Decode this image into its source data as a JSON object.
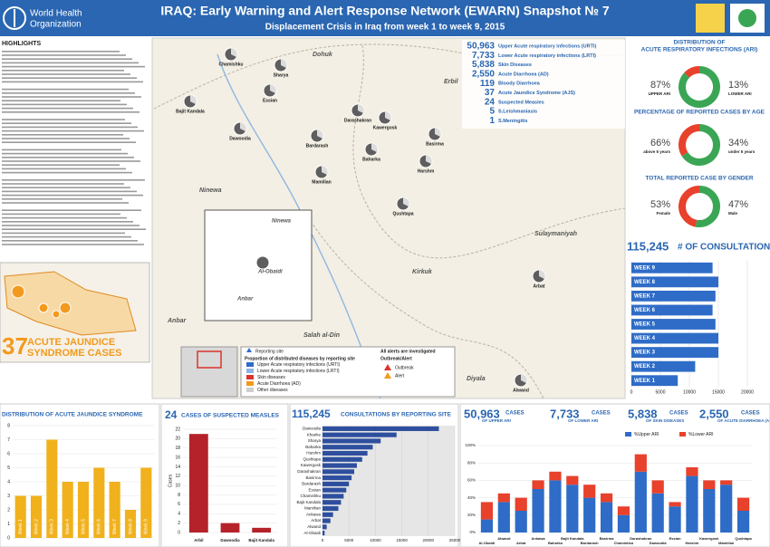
{
  "header": {
    "org": [
      "World Health",
      "Organization"
    ],
    "title": "IRAQ: Early Warning and Alert Response Network (EWARN) Snapshot № 7",
    "subtitle": "Displacement Crisis in Iraq from week 1 to week 9, 2015"
  },
  "highlights": {
    "heading": "HIGHLIGHTS"
  },
  "summary": [
    {
      "count": "50,963",
      "label": "Upper Acute respiratory infections (URTI)"
    },
    {
      "count": "7,733",
      "label": "Lower Acute respiratory infections (LRTI)"
    },
    {
      "count": "5,838",
      "label": "Skin Diseases"
    },
    {
      "count": "2,550",
      "label": "Acute Diarrhoea (AD)"
    },
    {
      "count": "119",
      "label": "Bloody Diarrhoea"
    },
    {
      "count": "37",
      "label": "Acute Jaundice Syndrome (AJS)"
    },
    {
      "count": "24",
      "label": "Suspected Measles"
    },
    {
      "count": "5",
      "label": "S.Leishmaniasis"
    },
    {
      "count": "1",
      "label": "S.Meningitis"
    }
  ],
  "jaundice_headline": {
    "count": "37",
    "label": [
      "ACUTE JAUNDICE",
      "SYNDROME CASES"
    ]
  },
  "consultations_headline": {
    "count": "115,245",
    "label": "# OF CONSULTATIONS"
  },
  "bottom_totals": [
    {
      "count": "50,963",
      "label": "CASES",
      "sub": "OF UPPER ARI"
    },
    {
      "count": "7,733",
      "label": "CASES",
      "sub": "OF LOWER ARI"
    },
    {
      "count": "5,838",
      "label": "CASES",
      "sub": "OF SKIN DISEASES"
    },
    {
      "count": "2,550",
      "label": "CASES",
      "sub": "OF ACUTE DIARRHOEA (AD)"
    }
  ],
  "map": {
    "regions": [
      "Dohuk",
      "Erbil",
      "Ninewa",
      "Sulaymaniyah",
      "Kirkuk",
      "Salah al-Din",
      "Anbar",
      "Diyala"
    ],
    "sites": [
      "Bajit Kandala",
      "Chamishku",
      "Sharya",
      "Essian",
      "Dawoodia",
      "Bardarash",
      "Darashakran",
      "Kawergosk",
      "Baharka",
      "Basirma",
      "Harshm",
      "Mamilian",
      "Qushtapa",
      "Arbat",
      "Alwand"
    ],
    "inset_labels": [
      "Ninewa",
      "Anbar",
      "Al-Obaidi"
    ],
    "legend": {
      "reporting": "Reporting site",
      "heading": "Proportion of distributed diseases by reporting site",
      "items": [
        {
          "label": "Upper Acute respiratory infections (URTI)",
          "color": "#2e6cc7"
        },
        {
          "label": "Lower Acute respiratory infections (LRTI)",
          "color": "#8fb3e6"
        },
        {
          "label": "Skin diseases",
          "color": "#d9342b"
        },
        {
          "label": "Acute Diarrhoea (AD)",
          "color": "#f39a1e"
        },
        {
          "label": "Other diseases",
          "color": "#cfcfcf"
        }
      ],
      "alerts_heading": "All alerts are investigated",
      "alerts_sub": "Outbreak/Alert",
      "alerts": [
        "Outbreak",
        "Alert"
      ]
    }
  },
  "chart_data": [
    {
      "type": "donut",
      "title": [
        "DISTRIBUTION OF",
        "ACUTE RESPIRATORY INFECTIONS (ARI)"
      ],
      "categories": [
        "UPPER ARI",
        "LOWER ARI"
      ],
      "values": [
        87,
        13
      ],
      "value_labels": [
        "87%",
        "13%"
      ],
      "colors": [
        "#3aa655",
        "#e8412c"
      ]
    },
    {
      "type": "donut",
      "title": [
        "PERCENTAGE OF REPORTED CASES BY AGE"
      ],
      "categories": [
        "above 5 years",
        "under 5 years"
      ],
      "values": [
        66,
        34
      ],
      "value_labels": [
        "66%",
        "34%"
      ],
      "colors": [
        "#3aa655",
        "#e8412c"
      ]
    },
    {
      "type": "donut",
      "title": [
        "TOTAL REPORTED CASE BY GENDER"
      ],
      "categories": [
        "Female",
        "Male"
      ],
      "values": [
        53,
        47
      ],
      "value_labels": [
        "53%",
        "47%"
      ],
      "colors": [
        "#3aa655",
        "#e8412c"
      ]
    },
    {
      "type": "hbar",
      "categories": [
        "WEEK 9",
        "WEEK 8",
        "WEEK 7",
        "WEEK 6",
        "WEEK 5",
        "WEEK 4",
        "WEEK 3",
        "WEEK 2",
        "WEEK 1"
      ],
      "values": [
        14000,
        15000,
        14500,
        14000,
        14500,
        15000,
        15000,
        11000,
        8000
      ],
      "color": "#2e6cc7",
      "xlim": [
        0,
        20000
      ],
      "xticks": [
        0,
        5000,
        10000,
        15000,
        20000
      ]
    },
    {
      "type": "bar",
      "title": "DISTRIBUTION OF ACUTE JAUNDICE SYNDROME",
      "categories": [
        "Week 1",
        "Week 2",
        "Week 3",
        "Week 4",
        "Week 5",
        "Week 6",
        "Week 7",
        "Week 8",
        "Week 9"
      ],
      "values": [
        3,
        3,
        7,
        4,
        4,
        5,
        4,
        2,
        5
      ],
      "color": "#f0b11c",
      "ylim": [
        0,
        8
      ],
      "yticks": [
        0,
        1,
        2,
        3,
        4,
        5,
        6,
        7,
        8
      ],
      "grid": true
    },
    {
      "type": "bar",
      "total": "24",
      "title": "CASES OF SUSPECTED MEASLES",
      "y_label": "Cases",
      "categories": [
        "Arbil",
        "Dawoodia",
        "Bajit Kandala"
      ],
      "values": [
        21,
        2,
        1
      ],
      "color": "#b5222a",
      "ylim": [
        0,
        22
      ],
      "yticks": [
        0,
        2,
        4,
        6,
        8,
        10,
        12,
        14,
        16,
        18,
        20,
        22
      ],
      "grid": true
    },
    {
      "type": "hbar",
      "total": "115,245",
      "title": "CONSULTATIONS BY REPORTING SITE",
      "categories": [
        "Dawoodia",
        "Khanke",
        "Sharya",
        "Baharka",
        "Harshm",
        "Qushtapa",
        "Kawergosk",
        "Darashakran",
        "Basirma",
        "Bardarash",
        "Essian",
        "Chamishku",
        "Bajit Kandala",
        "Mamilian",
        "Ankawa",
        "Arbat",
        "Alwand",
        "Al-Obaidi"
      ],
      "values": [
        22000,
        14000,
        11000,
        9500,
        8500,
        7500,
        6500,
        6000,
        5500,
        5000,
        4500,
        4000,
        3500,
        3000,
        2000,
        1500,
        800,
        400
      ],
      "color": "#2e4f9e",
      "xlim": [
        0,
        25000
      ],
      "xticks": [
        0,
        5000,
        10000,
        15000,
        20000,
        25000
      ]
    },
    {
      "type": "stacked",
      "categories": [
        "Al-Obaidi",
        "Alwand",
        "Arbat",
        "Ankawa",
        "Baharka",
        "Bajit Kandala",
        "Bardarash",
        "Basirma",
        "Chamishku",
        "Darashakran",
        "Dawoodia",
        "Essian",
        "Harshm",
        "Kawergosk",
        "Mamilian",
        "Qushtapa"
      ],
      "series": [
        {
          "name": "%Upper ARI",
          "color": "#2e6cc7",
          "values": [
            15,
            35,
            25,
            50,
            60,
            55,
            40,
            35,
            20,
            70,
            45,
            30,
            65,
            50,
            55,
            25
          ]
        },
        {
          "name": "%Lower ARI",
          "color": "#e8412c",
          "values": [
            20,
            10,
            15,
            10,
            10,
            10,
            15,
            10,
            10,
            20,
            15,
            5,
            10,
            10,
            5,
            15
          ]
        }
      ],
      "ylim": [
        0,
        100
      ],
      "yticks": [
        {
          "value": 0,
          "label": "0%"
        },
        {
          "value": 20,
          "label": "20%"
        },
        {
          "value": 40,
          "label": "40%"
        },
        {
          "value": 60,
          "label": "60%"
        },
        {
          "value": 80,
          "label": "80%"
        },
        {
          "value": 100,
          "label": "100%"
        }
      ],
      "grid": true
    }
  ]
}
